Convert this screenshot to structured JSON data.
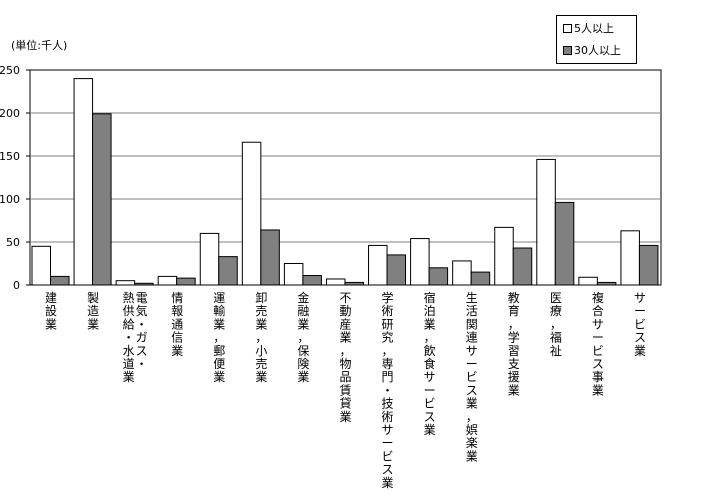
{
  "unit_label": "(単位:千人)",
  "colors": {
    "series1": "#ffffff",
    "series2": "#808080",
    "gridline": "#808080",
    "axis": "#000000"
  },
  "chart_data": {
    "type": "bar",
    "categories": [
      "建設業",
      "製造業",
      "電気・ガス・熱供給・水道業",
      "情報通信業",
      "運輸業，郵便業",
      "卸売業，小売業",
      "金融業，保険業",
      "不動産業，物品賃貸業",
      "学術研究，専門・技術サービス業",
      "宿泊業，飲食サービス業",
      "生活関連サービス業，娯楽業",
      "教育，学習支援業",
      "医療，福祉",
      "複合サービス事業",
      "サービス業"
    ],
    "category_label_lines": [
      [
        "建設業"
      ],
      [
        "製造業"
      ],
      [
        "電気・ガス・",
        "熱供給・水道業"
      ],
      [
        "情報通信業"
      ],
      [
        "運輸業，郵便業"
      ],
      [
        "卸売業，小売業"
      ],
      [
        "金融業，保険業"
      ],
      [
        "不動産業，物品賃貸業"
      ],
      [
        "学術研究，専門・技術サービス業"
      ],
      [
        "宿泊業，飲食サービス業"
      ],
      [
        "生活関連サービス業，娯楽業"
      ],
      [
        "教育，学習支援業"
      ],
      [
        "医療，福祉"
      ],
      [
        "複合サービス事業"
      ],
      [
        "サービス業"
      ]
    ],
    "series": [
      {
        "name": "5人以上",
        "values": [
          45,
          240,
          5,
          10,
          60,
          166,
          25,
          7,
          46,
          54,
          28,
          67,
          146,
          9,
          63
        ]
      },
      {
        "name": "30人以上",
        "values": [
          10,
          199,
          2,
          8,
          33,
          64,
          11,
          3,
          35,
          20,
          15,
          43,
          96,
          3,
          46
        ]
      }
    ],
    "ylim": [
      0,
      250
    ],
    "yticks": [
      0,
      50,
      100,
      150,
      200,
      250
    ],
    "grid": true,
    "legend": "top-right"
  }
}
